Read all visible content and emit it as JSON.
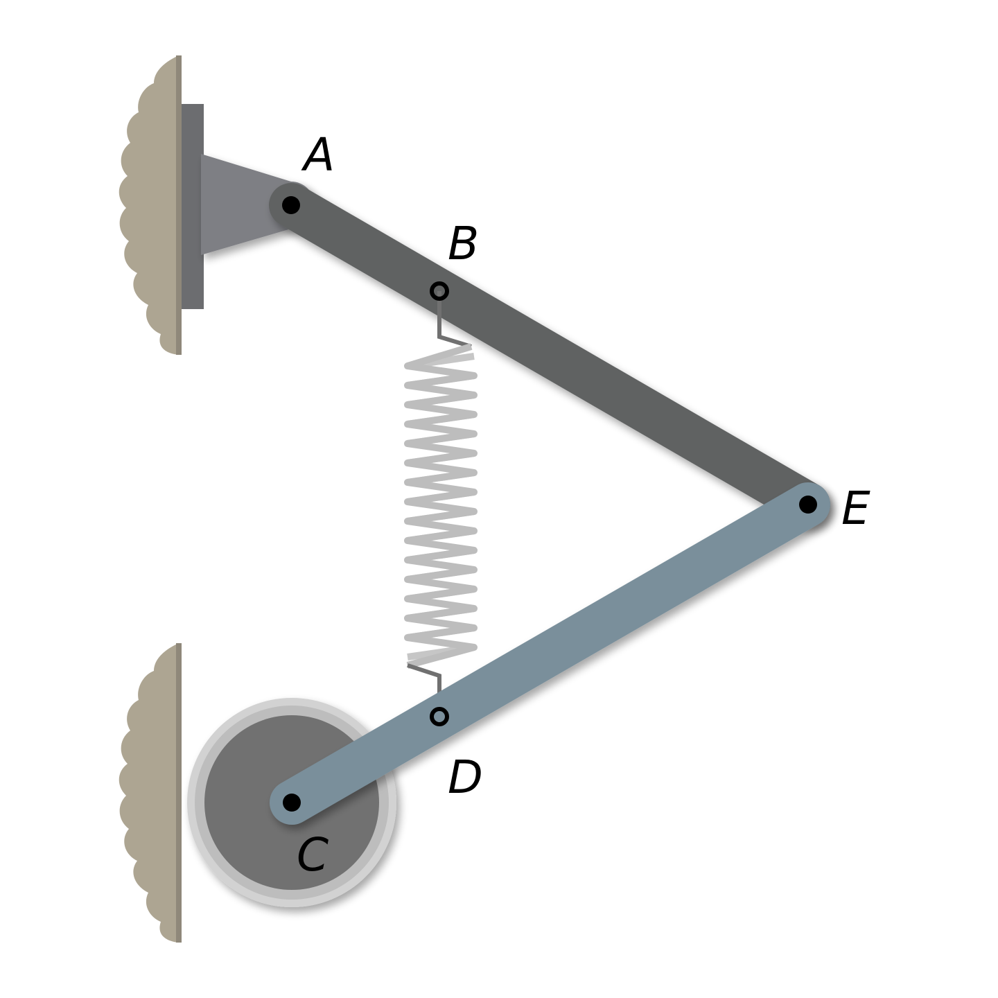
{
  "labels": {
    "A": "A",
    "B": "B",
    "C": "C",
    "D": "D",
    "E": "E"
  },
  "colors": {
    "background": "#ffffff",
    "wall": "#ada592",
    "wall_shadow": "#8f887a",
    "mount_plate": "#6c6d70",
    "bracket": "#7e7f84",
    "link_AE": "#606262",
    "link_CE": "#7a8f9b",
    "wheel_rim": "#c4c4c4",
    "wheel_hub": "#717171",
    "spring": "#bdbdbd",
    "hook": "#707070",
    "pin": "#000000"
  }
}
